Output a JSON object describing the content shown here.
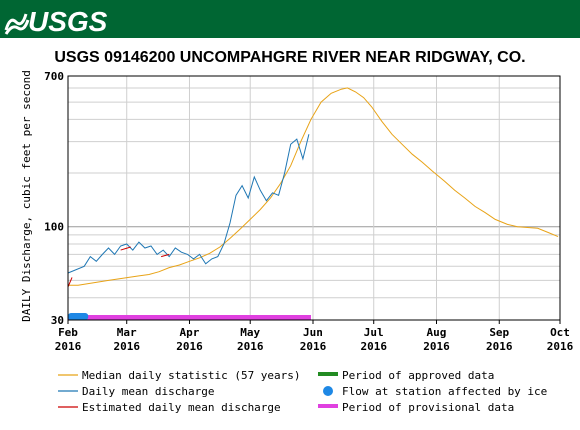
{
  "header": {
    "logo_text": "USGS",
    "band_color": "#006633"
  },
  "chart_data": {
    "type": "line",
    "title": "USGS 09146200 UNCOMPAHGRE RIVER NEAR RIDGWAY, CO.",
    "ylabel": "DAILY Discharge, cubic feet per second",
    "xlabel": "",
    "y_scale": "log",
    "ylim": [
      30,
      700
    ],
    "y_ticks": [
      {
        "value": 30,
        "label": "30"
      },
      {
        "value": 100,
        "label": "100"
      },
      {
        "value": 700,
        "label": "700"
      }
    ],
    "y_minor_gridlines": [
      40,
      50,
      60,
      70,
      80,
      90,
      200,
      300,
      400,
      500,
      600
    ],
    "xlim": [
      "2016-02-01",
      "2016-10-01"
    ],
    "x_ticks": [
      {
        "date": "2016-02-01",
        "line1": "Feb",
        "line2": "2016"
      },
      {
        "date": "2016-03-01",
        "line1": "Mar",
        "line2": "2016"
      },
      {
        "date": "2016-04-01",
        "line1": "Apr",
        "line2": "2016"
      },
      {
        "date": "2016-05-01",
        "line1": "May",
        "line2": "2016"
      },
      {
        "date": "2016-06-01",
        "line1": "Jun",
        "line2": "2016"
      },
      {
        "date": "2016-07-01",
        "line1": "Jul",
        "line2": "2016"
      },
      {
        "date": "2016-08-01",
        "line1": "Aug",
        "line2": "2016"
      },
      {
        "date": "2016-09-01",
        "line1": "Sep",
        "line2": "2016"
      },
      {
        "date": "2016-10-01",
        "line1": "Oct",
        "line2": "2016"
      }
    ],
    "grid": true,
    "series": [
      {
        "name": "Median daily statistic (57 years)",
        "color": "#e8a317",
        "points": [
          [
            "2016-02-01",
            47
          ],
          [
            "2016-02-06",
            47
          ],
          [
            "2016-02-11",
            48
          ],
          [
            "2016-02-16",
            49
          ],
          [
            "2016-02-21",
            50
          ],
          [
            "2016-02-26",
            51
          ],
          [
            "2016-03-02",
            52
          ],
          [
            "2016-03-07",
            53
          ],
          [
            "2016-03-12",
            54
          ],
          [
            "2016-03-17",
            56
          ],
          [
            "2016-03-22",
            59
          ],
          [
            "2016-03-27",
            61
          ],
          [
            "2016-04-01",
            64
          ],
          [
            "2016-04-06",
            67
          ],
          [
            "2016-04-11",
            71
          ],
          [
            "2016-04-16",
            77
          ],
          [
            "2016-04-21",
            86
          ],
          [
            "2016-04-26",
            97
          ],
          [
            "2016-05-01",
            110
          ],
          [
            "2016-05-06",
            125
          ],
          [
            "2016-05-11",
            145
          ],
          [
            "2016-05-16",
            175
          ],
          [
            "2016-05-21",
            220
          ],
          [
            "2016-05-26",
            300
          ],
          [
            "2016-05-31",
            400
          ],
          [
            "2016-06-05",
            500
          ],
          [
            "2016-06-10",
            560
          ],
          [
            "2016-06-15",
            590
          ],
          [
            "2016-06-18",
            600
          ],
          [
            "2016-06-22",
            570
          ],
          [
            "2016-06-26",
            530
          ],
          [
            "2016-06-30",
            470
          ],
          [
            "2016-07-05",
            390
          ],
          [
            "2016-07-10",
            330
          ],
          [
            "2016-07-15",
            290
          ],
          [
            "2016-07-20",
            255
          ],
          [
            "2016-07-25",
            230
          ],
          [
            "2016-07-30",
            205
          ],
          [
            "2016-08-05",
            180
          ],
          [
            "2016-08-10",
            160
          ],
          [
            "2016-08-15",
            145
          ],
          [
            "2016-08-20",
            130
          ],
          [
            "2016-08-25",
            120
          ],
          [
            "2016-08-30",
            110
          ],
          [
            "2016-09-05",
            103
          ],
          [
            "2016-09-10",
            100
          ],
          [
            "2016-09-15",
            99
          ],
          [
            "2016-09-20",
            98
          ],
          [
            "2016-09-25",
            93
          ],
          [
            "2016-09-30",
            88
          ]
        ]
      },
      {
        "name": "Daily mean discharge",
        "color": "#1f77b4",
        "points": [
          [
            "2016-02-01",
            55
          ],
          [
            "2016-02-09",
            60
          ],
          [
            "2016-02-12",
            68
          ],
          [
            "2016-02-15",
            64
          ],
          [
            "2016-02-18",
            70
          ],
          [
            "2016-02-21",
            76
          ],
          [
            "2016-02-24",
            70
          ],
          [
            "2016-02-27",
            78
          ],
          [
            "2016-03-01",
            80
          ],
          [
            "2016-03-04",
            74
          ],
          [
            "2016-03-07",
            82
          ],
          [
            "2016-03-10",
            76
          ],
          [
            "2016-03-13",
            78
          ],
          [
            "2016-03-16",
            70
          ],
          [
            "2016-03-19",
            74
          ],
          [
            "2016-03-22",
            68
          ],
          [
            "2016-03-25",
            76
          ],
          [
            "2016-03-28",
            72
          ],
          [
            "2016-03-31",
            70
          ],
          [
            "2016-04-03",
            66
          ],
          [
            "2016-04-06",
            70
          ],
          [
            "2016-04-09",
            62
          ],
          [
            "2016-04-12",
            66
          ],
          [
            "2016-04-15",
            68
          ],
          [
            "2016-04-18",
            80
          ],
          [
            "2016-04-21",
            105
          ],
          [
            "2016-04-24",
            150
          ],
          [
            "2016-04-27",
            170
          ],
          [
            "2016-04-30",
            145
          ],
          [
            "2016-05-03",
            190
          ],
          [
            "2016-05-06",
            160
          ],
          [
            "2016-05-09",
            140
          ],
          [
            "2016-05-12",
            155
          ],
          [
            "2016-05-15",
            150
          ],
          [
            "2016-05-18",
            200
          ],
          [
            "2016-05-21",
            290
          ],
          [
            "2016-05-24",
            310
          ],
          [
            "2016-05-27",
            240
          ],
          [
            "2016-05-30",
            330
          ]
        ]
      },
      {
        "name": "Estimated daily mean discharge",
        "color": "#cc0000",
        "points": [
          [
            "2016-02-01",
            46
          ],
          [
            "2016-02-03",
            52
          ],
          [
            "2016-02-27",
            74
          ],
          [
            "2016-03-03",
            77
          ],
          [
            "2016-03-18",
            68
          ],
          [
            "2016-03-22",
            70
          ]
        ]
      }
    ],
    "period_bars": [
      {
        "name": "Period of provisional data",
        "color": "#e040e0",
        "start": "2016-02-01",
        "end": "2016-05-31"
      }
    ],
    "ice_marker": {
      "name": "Flow at station affected by ice",
      "color": "#1e88e5",
      "start": "2016-02-01",
      "end": "2016-02-11"
    },
    "legend": {
      "placement": "bottom",
      "items": [
        {
          "label": "Median daily statistic (57 years)",
          "swatch": "line",
          "color": "#e8a317"
        },
        {
          "label": "Period of approved data",
          "swatch": "bar",
          "color": "#228b22"
        },
        {
          "label": "Daily mean discharge",
          "swatch": "line",
          "color": "#1f77b4"
        },
        {
          "label": "Flow at station affected by ice",
          "swatch": "dot",
          "color": "#1e88e5"
        },
        {
          "label": "Estimated daily mean discharge",
          "swatch": "line",
          "color": "#cc0000"
        },
        {
          "label": "Period of provisional data",
          "swatch": "bar",
          "color": "#e040e0"
        }
      ]
    }
  }
}
